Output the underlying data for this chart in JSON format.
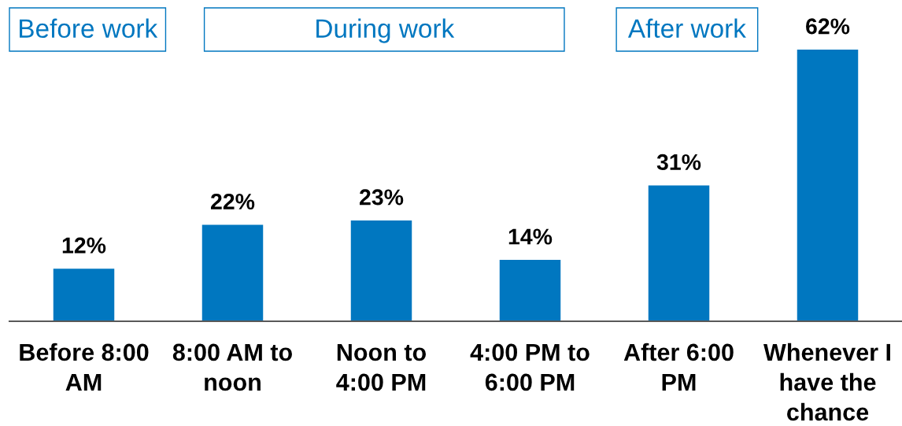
{
  "chart_data": {
    "type": "bar",
    "categories": [
      "Before 8:00 AM",
      "8:00 AM to noon",
      "Noon to 4:00 PM",
      "4:00 PM to 6:00 PM",
      "After 6:00 PM",
      "Whenever I have the chance"
    ],
    "values": [
      12,
      22,
      23,
      14,
      31,
      62
    ],
    "value_labels": [
      "12%",
      "22%",
      "23%",
      "14%",
      "31%",
      "62%"
    ],
    "color": "#0077c0",
    "annotations": [
      "Before work",
      "During work",
      "After work"
    ],
    "tick_labels": "x",
    "grid": false
  }
}
